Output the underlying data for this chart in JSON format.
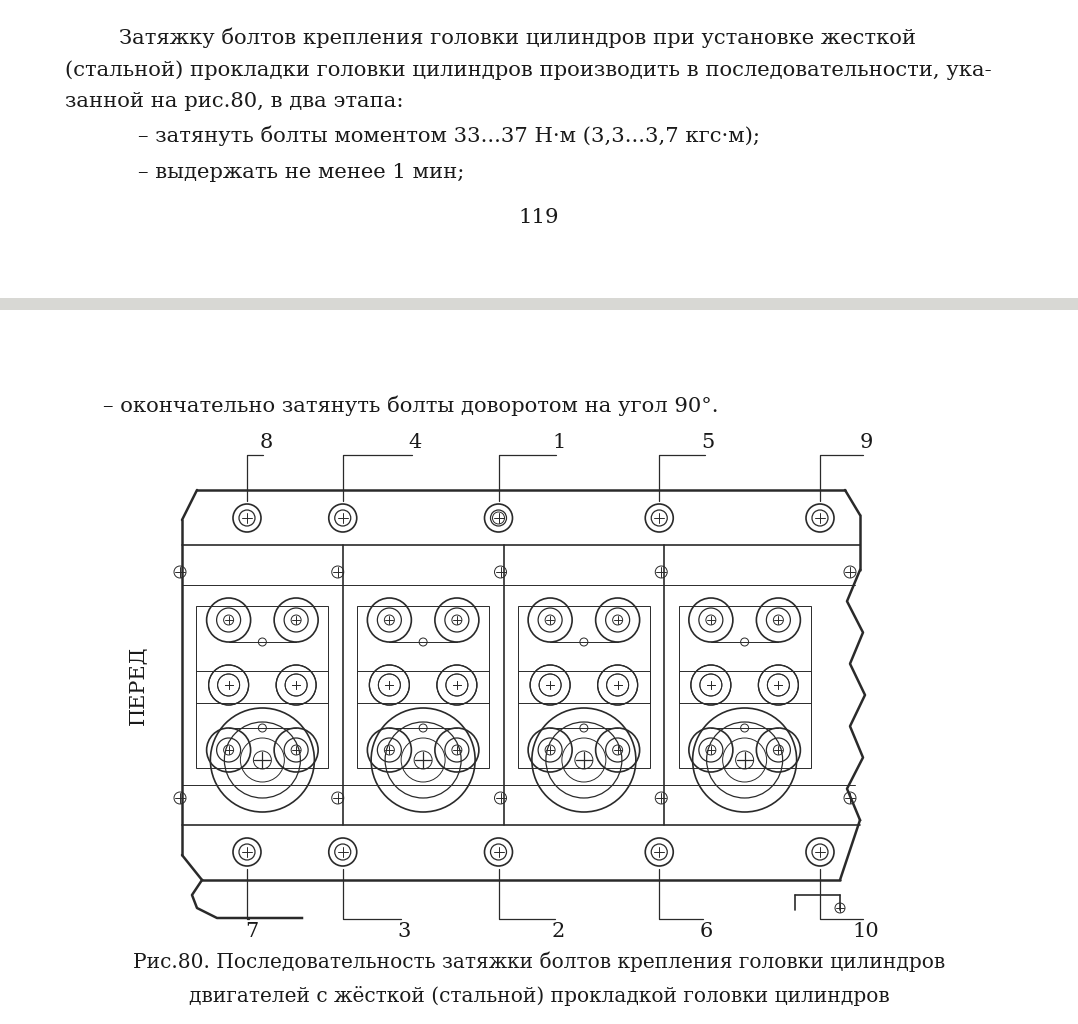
{
  "bg_color": "#ffffff",
  "text_color": "#1a1a1a",
  "diagram_line_color": "#2a2a2a",
  "top_text_lines": [
    [
      "        Затяжку болтов крепления головки цилиндров при установке жесткой",
      65,
      28
    ],
    [
      "(стальной) прокладки головки цилиндров производить в последовательности, ука-",
      65,
      60
    ],
    [
      "занной на рис.80, в два этапа:",
      65,
      92
    ]
  ],
  "bullet1": "– затянуть болты моментом 33...37 Н·м (3,3...3,7 кгс·м);",
  "bullet2": "– выдержать не менее 1 мин;",
  "page_number": "119",
  "second_bullet": "– окончательно затянуть болты доворотом на угол 90°.",
  "top_labels": [
    "8",
    "4",
    "1",
    "5",
    "9"
  ],
  "bottom_labels": [
    "7",
    "3",
    "2",
    "6",
    "10"
  ],
  "side_label": "ПЕРЕД",
  "caption_line1": "Рис.80. Последовательность затяжки болтов крепления головки цилиндров",
  "caption_line2": "двигателей с жёсткой (стальной) прокладкой головки цилиндров"
}
